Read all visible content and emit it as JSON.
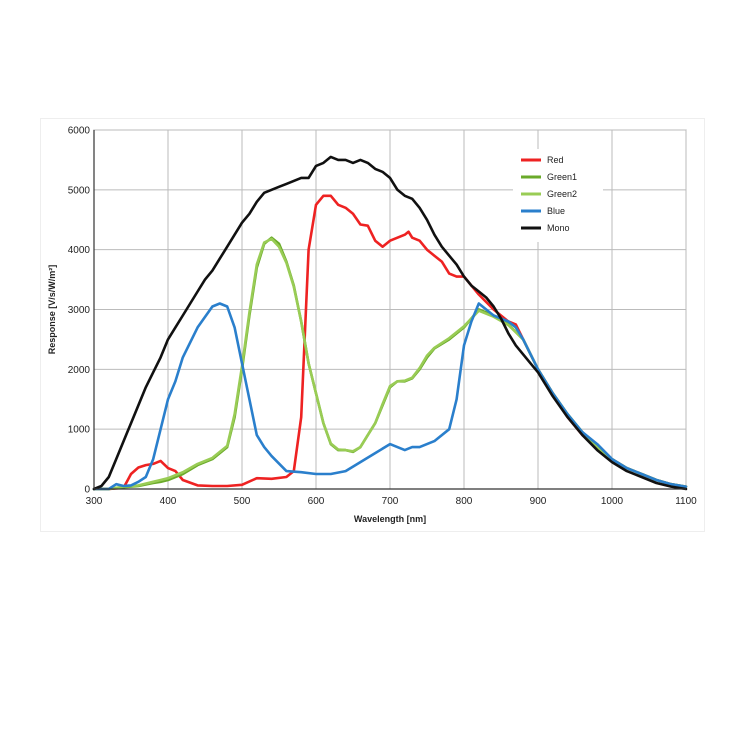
{
  "chart_data": {
    "type": "line",
    "title": "",
    "xlabel": "Wavelength [nm]",
    "ylabel": "Response [V/s/W/m²]",
    "xlim": [
      300,
      1100
    ],
    "ylim": [
      0,
      6000
    ],
    "x_ticks": [
      "300",
      "400",
      "500",
      "600",
      "700",
      "800",
      "900",
      "1000",
      "1100"
    ],
    "y_ticks": [
      "0",
      "1000",
      "2000",
      "3000",
      "4000",
      "5000",
      "6000"
    ],
    "grid": true,
    "legend_position": "top-right",
    "series": [
      {
        "name": "Red",
        "color": "#ee2222",
        "x": [
          300,
          320,
          340,
          350,
          360,
          370,
          380,
          390,
          400,
          410,
          420,
          440,
          460,
          480,
          500,
          520,
          540,
          560,
          570,
          580,
          585,
          590,
          600,
          610,
          620,
          630,
          640,
          650,
          660,
          670,
          680,
          690,
          700,
          710,
          720,
          725,
          730,
          740,
          750,
          760,
          770,
          780,
          790,
          800,
          820,
          840,
          860,
          870,
          880,
          900,
          920,
          940,
          960,
          980,
          1000,
          1020,
          1040,
          1060,
          1080,
          1100
        ],
        "y": [
          0,
          0,
          20,
          250,
          360,
          400,
          420,
          470,
          350,
          300,
          150,
          60,
          50,
          50,
          70,
          180,
          170,
          200,
          300,
          1200,
          2600,
          4000,
          4750,
          4900,
          4900,
          4750,
          4700,
          4600,
          4420,
          4400,
          4150,
          4050,
          4150,
          4200,
          4250,
          4300,
          4200,
          4150,
          4000,
          3900,
          3800,
          3600,
          3550,
          3550,
          3250,
          3000,
          2800,
          2750,
          2500,
          2000,
          1600,
          1200,
          900,
          700,
          500,
          350,
          250,
          150,
          80,
          40
        ]
      },
      {
        "name": "Green1",
        "color": "#6aaa2a",
        "x": [
          300,
          320,
          340,
          360,
          380,
          390,
          400,
          420,
          440,
          460,
          480,
          490,
          500,
          510,
          520,
          530,
          540,
          550,
          560,
          570,
          580,
          590,
          600,
          610,
          620,
          630,
          640,
          650,
          660,
          670,
          680,
          690,
          700,
          710,
          720,
          730,
          740,
          750,
          760,
          780,
          800,
          820,
          840,
          860,
          880,
          900,
          920,
          940,
          960,
          980,
          1000,
          1020,
          1040,
          1060,
          1080,
          1100
        ],
        "y": [
          0,
          0,
          30,
          50,
          100,
          120,
          150,
          250,
          400,
          500,
          700,
          1200,
          2000,
          2900,
          3700,
          4100,
          4200,
          4100,
          3800,
          3400,
          2800,
          2100,
          1600,
          1100,
          750,
          650,
          650,
          620,
          700,
          900,
          1100,
          1400,
          1700,
          1800,
          1800,
          1850,
          2000,
          2200,
          2350,
          2500,
          2700,
          3000,
          2900,
          2750,
          2500,
          2000,
          1600,
          1250,
          950,
          700,
          500,
          350,
          250,
          150,
          80,
          40
        ]
      },
      {
        "name": "Green2",
        "color": "#99cc55",
        "x": [
          300,
          320,
          340,
          360,
          380,
          390,
          400,
          420,
          440,
          460,
          480,
          490,
          500,
          510,
          520,
          530,
          540,
          550,
          560,
          570,
          580,
          590,
          600,
          610,
          620,
          630,
          640,
          650,
          660,
          670,
          680,
          690,
          700,
          710,
          720,
          730,
          740,
          750,
          760,
          780,
          800,
          820,
          840,
          860,
          880,
          900,
          920,
          940,
          960,
          980,
          1000,
          1020,
          1040,
          1060,
          1080,
          1100
        ],
        "y": [
          0,
          0,
          40,
          60,
          120,
          150,
          180,
          280,
          420,
          520,
          720,
          1250,
          2050,
          2950,
          3750,
          4120,
          4180,
          4050,
          3780,
          3380,
          2800,
          2100,
          1600,
          1100,
          760,
          660,
          650,
          630,
          700,
          900,
          1100,
          1420,
          1720,
          1800,
          1810,
          1860,
          2020,
          2230,
          2360,
          2520,
          2720,
          2980,
          2880,
          2740,
          2500,
          2000,
          1600,
          1250,
          950,
          700,
          500,
          350,
          250,
          150,
          80,
          40
        ]
      },
      {
        "name": "Blue",
        "color": "#2a7fcc",
        "x": [
          300,
          320,
          330,
          340,
          350,
          360,
          370,
          380,
          390,
          400,
          410,
          420,
          440,
          460,
          470,
          480,
          490,
          500,
          510,
          520,
          530,
          540,
          560,
          580,
          600,
          620,
          640,
          660,
          680,
          700,
          710,
          720,
          730,
          740,
          760,
          780,
          790,
          800,
          810,
          820,
          830,
          840,
          850,
          860,
          870,
          880,
          900,
          920,
          940,
          960,
          980,
          1000,
          1020,
          1040,
          1060,
          1080,
          1100
        ],
        "y": [
          0,
          0,
          80,
          50,
          60,
          120,
          200,
          500,
          1000,
          1500,
          1800,
          2200,
          2700,
          3050,
          3100,
          3050,
          2700,
          2100,
          1500,
          900,
          700,
          550,
          300,
          280,
          250,
          250,
          300,
          450,
          600,
          750,
          700,
          650,
          700,
          700,
          800,
          1000,
          1500,
          2400,
          2800,
          3100,
          3000,
          2900,
          2850,
          2800,
          2700,
          2500,
          2000,
          1600,
          1250,
          950,
          750,
          500,
          350,
          250,
          150,
          80,
          40
        ]
      },
      {
        "name": "Mono",
        "color": "#111111",
        "x": [
          300,
          310,
          320,
          330,
          340,
          350,
          360,
          370,
          380,
          390,
          400,
          410,
          420,
          430,
          440,
          450,
          460,
          470,
          480,
          490,
          500,
          510,
          520,
          530,
          540,
          550,
          560,
          570,
          580,
          590,
          600,
          610,
          620,
          630,
          640,
          650,
          660,
          670,
          680,
          690,
          700,
          710,
          720,
          730,
          740,
          750,
          760,
          770,
          780,
          790,
          800,
          810,
          820,
          830,
          840,
          850,
          860,
          870,
          880,
          890,
          900,
          920,
          940,
          960,
          980,
          1000,
          1020,
          1040,
          1060,
          1080,
          1100
        ],
        "y": [
          0,
          50,
          200,
          500,
          800,
          1100,
          1400,
          1700,
          1950,
          2200,
          2500,
          2700,
          2900,
          3100,
          3300,
          3500,
          3650,
          3850,
          4050,
          4250,
          4450,
          4600,
          4800,
          4950,
          5000,
          5050,
          5100,
          5150,
          5200,
          5200,
          5400,
          5450,
          5550,
          5500,
          5500,
          5450,
          5500,
          5450,
          5350,
          5300,
          5200,
          5000,
          4900,
          4850,
          4700,
          4500,
          4250,
          4050,
          3900,
          3750,
          3550,
          3400,
          3300,
          3200,
          3050,
          2850,
          2600,
          2400,
          2250,
          2100,
          1950,
          1550,
          1200,
          900,
          650,
          450,
          300,
          200,
          100,
          40,
          0
        ]
      }
    ]
  }
}
